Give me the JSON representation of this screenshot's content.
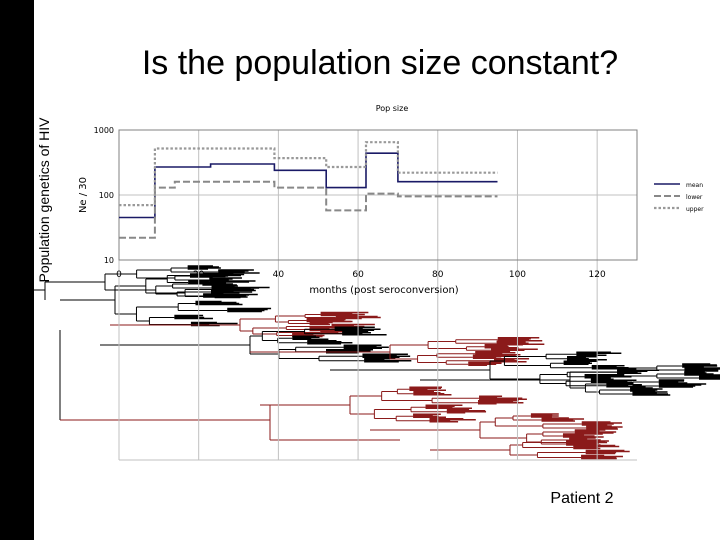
{
  "slide": {
    "title": "Is the population size constant?",
    "side_title": "Population genetics of HIV",
    "caption": "Patient 2"
  },
  "colors": {
    "mean": "#1a1a66",
    "lower": "#888888",
    "upper": "#999999",
    "tree_dark": "#000000",
    "tree_red": "#8b1a1a",
    "grid": "#c0c0c0"
  },
  "chart_data": {
    "type": "line",
    "title": "Pop size",
    "xlabel": "months (post seroconversion)",
    "ylabel": "Ne / 30",
    "xlim": [
      0,
      130
    ],
    "ylim": [
      10,
      1000
    ],
    "yscale": "log",
    "x_ticks": [
      "0",
      "20",
      "40",
      "60",
      "80",
      "100",
      "120"
    ],
    "y_ticks": [
      "1000",
      "100",
      "10"
    ],
    "legend": {
      "placement": "right",
      "entries": [
        "mean",
        "lower",
        "upper"
      ]
    },
    "series": [
      {
        "name": "mean",
        "style": "solid",
        "steps": [
          [
            0,
            45
          ],
          [
            9,
            45
          ],
          [
            9,
            270
          ],
          [
            23,
            270
          ],
          [
            23,
            300
          ],
          [
            39,
            300
          ],
          [
            39,
            240
          ],
          [
            52,
            240
          ],
          [
            52,
            130
          ],
          [
            62,
            130
          ],
          [
            62,
            440
          ],
          [
            70,
            440
          ],
          [
            70,
            160
          ],
          [
            95,
            160
          ]
        ]
      },
      {
        "name": "lower",
        "style": "dashed",
        "steps": [
          [
            0,
            22
          ],
          [
            9,
            22
          ],
          [
            9,
            130
          ],
          [
            14,
            130
          ],
          [
            14,
            160
          ],
          [
            39,
            160
          ],
          [
            39,
            130
          ],
          [
            52,
            130
          ],
          [
            52,
            58
          ],
          [
            62,
            58
          ],
          [
            62,
            105
          ],
          [
            70,
            105
          ],
          [
            70,
            95
          ],
          [
            95,
            95
          ]
        ]
      },
      {
        "name": "upper",
        "style": "dotted",
        "steps": [
          [
            0,
            70
          ],
          [
            9,
            70
          ],
          [
            9,
            520
          ],
          [
            39,
            520
          ],
          [
            39,
            370
          ],
          [
            52,
            370
          ],
          [
            52,
            270
          ],
          [
            62,
            270
          ],
          [
            62,
            650
          ],
          [
            70,
            650
          ],
          [
            70,
            220
          ],
          [
            95,
            220
          ]
        ]
      }
    ]
  }
}
